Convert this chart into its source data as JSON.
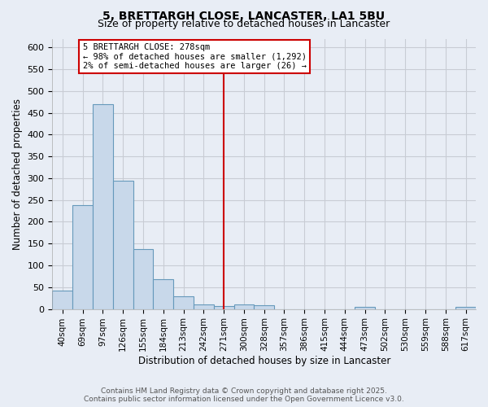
{
  "title": "5, BRETTARGH CLOSE, LANCASTER, LA1 5BU",
  "subtitle": "Size of property relative to detached houses in Lancaster",
  "xlabel": "Distribution of detached houses by size in Lancaster",
  "ylabel": "Number of detached properties",
  "categories": [
    "40sqm",
    "69sqm",
    "97sqm",
    "126sqm",
    "155sqm",
    "184sqm",
    "213sqm",
    "242sqm",
    "271sqm",
    "300sqm",
    "328sqm",
    "357sqm",
    "386sqm",
    "415sqm",
    "444sqm",
    "473sqm",
    "502sqm",
    "530sqm",
    "559sqm",
    "588sqm",
    "617sqm"
  ],
  "values": [
    42,
    238,
    470,
    295,
    138,
    68,
    30,
    10,
    7,
    10,
    8,
    0,
    0,
    0,
    0,
    4,
    0,
    0,
    0,
    0,
    4
  ],
  "bar_color": "#c8d8ea",
  "bar_edge_color": "#6699bb",
  "vline_x_index": 8,
  "annotation_line1": "5 BRETTARGH CLOSE: 278sqm",
  "annotation_line2": "← 98% of detached houses are smaller (1,292)",
  "annotation_line3": "2% of semi-detached houses are larger (26) →",
  "annotation_box_color": "#cc0000",
  "footer_line1": "Contains HM Land Registry data © Crown copyright and database right 2025.",
  "footer_line2": "Contains public sector information licensed under the Open Government Licence v3.0.",
  "ylim": [
    0,
    620
  ],
  "yticks": [
    0,
    50,
    100,
    150,
    200,
    250,
    300,
    350,
    400,
    450,
    500,
    550,
    600
  ],
  "bg_color": "#e8edf5",
  "plot_bg_color": "#e8edf5",
  "grid_color": "#c8ccd4",
  "title_fontsize": 10,
  "subtitle_fontsize": 9,
  "axis_label_fontsize": 8.5,
  "tick_fontsize": 8,
  "footer_fontsize": 6.5
}
